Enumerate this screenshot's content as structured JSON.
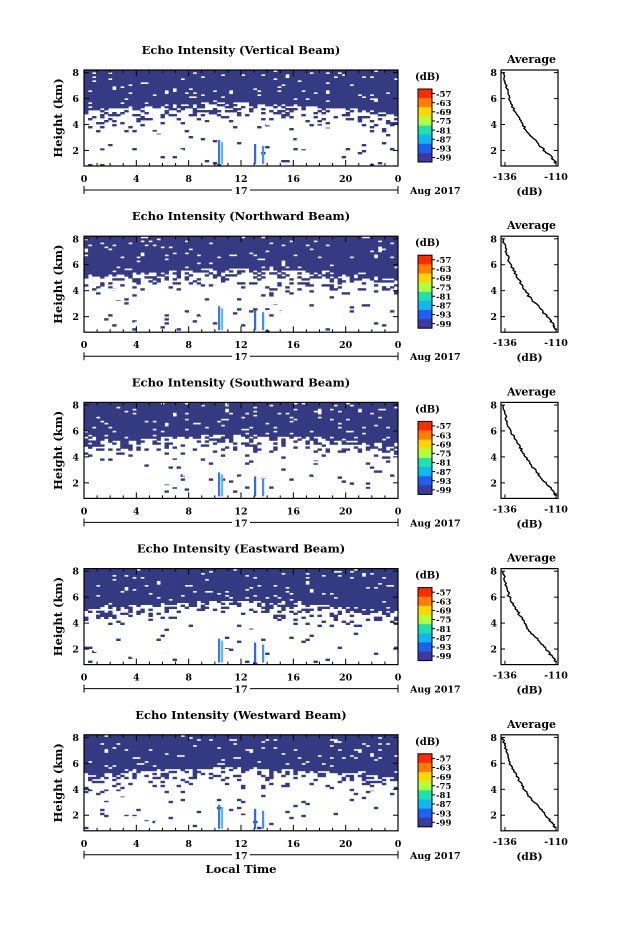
{
  "chart_data": [
    {
      "type": "heatmap",
      "title": "Echo Intensity (Vertical Beam)",
      "ylabel": "Height (km)",
      "xlabel": "",
      "x_ticks": [
        "0",
        "4",
        "8",
        "12",
        "16",
        "20",
        "0"
      ],
      "xlim": [
        0,
        24
      ],
      "y_ticks": [
        "2",
        "4",
        "6",
        "8"
      ],
      "ylim": [
        0.8,
        8.2
      ],
      "date_label": "17",
      "month_label": "Aug 2017",
      "colorbar": {
        "label": "(dB)",
        "ticks": [
          "-57",
          "-63",
          "-69",
          "-75",
          "-81",
          "-87",
          "-93",
          "-99"
        ],
        "colors": [
          "#ff2a00",
          "#ff7d00",
          "#ffd700",
          "#b0ff40",
          "#20e0b0",
          "#10b8f0",
          "#2060f0",
          "#3a3aa0"
        ]
      },
      "profile": {
        "title": "Average",
        "xlabel": "(dB)",
        "x_ticks": [
          "-136",
          "-110"
        ],
        "y_ticks": [
          "2",
          "4",
          "6",
          "8"
        ],
        "x": [
          -137,
          -136,
          -135,
          -134,
          -133,
          -131,
          -129,
          -127,
          -125,
          -122,
          -119,
          -116,
          -113,
          -111,
          -110
        ],
        "y": [
          8.0,
          7.3,
          6.8,
          6.2,
          5.6,
          5.0,
          4.5,
          4.0,
          3.5,
          3.0,
          2.5,
          2.0,
          1.6,
          1.2,
          1.0
        ]
      }
    },
    {
      "type": "heatmap",
      "title": "Echo Intensity (Northward Beam)",
      "ylabel": "Height (km)",
      "xlabel": "",
      "x_ticks": [
        "0",
        "4",
        "8",
        "12",
        "16",
        "20",
        "0"
      ],
      "xlim": [
        0,
        24
      ],
      "y_ticks": [
        "2",
        "4",
        "6",
        "8"
      ],
      "ylim": [
        0.8,
        8.2
      ],
      "date_label": "17",
      "month_label": "Aug 2017",
      "colorbar": {
        "label": "(dB)",
        "ticks": [
          "-57",
          "-63",
          "-69",
          "-75",
          "-81",
          "-87",
          "-93",
          "-99"
        ],
        "colors": [
          "#ff2a00",
          "#ff7d00",
          "#ffd700",
          "#b0ff40",
          "#20e0b0",
          "#10b8f0",
          "#2060f0",
          "#3a3aa0"
        ]
      },
      "profile": {
        "title": "Average",
        "xlabel": "(dB)",
        "x_ticks": [
          "-136",
          "-110"
        ],
        "y_ticks": [
          "2",
          "4",
          "6",
          "8"
        ],
        "x": [
          -137,
          -136,
          -135,
          -134,
          -132,
          -130,
          -128,
          -126,
          -124,
          -121,
          -118,
          -115,
          -113,
          -111,
          -110
        ],
        "y": [
          8.0,
          7.4,
          6.9,
          6.3,
          5.7,
          5.1,
          4.6,
          4.1,
          3.6,
          3.1,
          2.6,
          2.1,
          1.7,
          1.3,
          1.0
        ]
      }
    },
    {
      "type": "heatmap",
      "title": "Echo Intensity (Southward Beam)",
      "ylabel": "Height (km)",
      "xlabel": "",
      "x_ticks": [
        "0",
        "4",
        "8",
        "12",
        "16",
        "20",
        "0"
      ],
      "xlim": [
        0,
        24
      ],
      "y_ticks": [
        "2",
        "4",
        "6",
        "8"
      ],
      "ylim": [
        0.8,
        8.2
      ],
      "date_label": "17",
      "month_label": "Aug 2017",
      "colorbar": {
        "label": "(dB)",
        "ticks": [
          "-57",
          "-63",
          "-69",
          "-75",
          "-81",
          "-87",
          "-93",
          "-99"
        ],
        "colors": [
          "#ff2a00",
          "#ff7d00",
          "#ffd700",
          "#b0ff40",
          "#20e0b0",
          "#10b8f0",
          "#2060f0",
          "#3a3aa0"
        ]
      },
      "profile": {
        "title": "Average",
        "xlabel": "(dB)",
        "x_ticks": [
          "-136",
          "-110"
        ],
        "y_ticks": [
          "2",
          "4",
          "6",
          "8"
        ],
        "x": [
          -137,
          -136,
          -135,
          -133,
          -131,
          -129,
          -127,
          -125,
          -123,
          -120,
          -118,
          -115,
          -113,
          -111,
          -110
        ],
        "y": [
          8.0,
          7.2,
          6.6,
          6.0,
          5.4,
          4.9,
          4.4,
          3.9,
          3.4,
          2.9,
          2.4,
          2.0,
          1.6,
          1.2,
          1.0
        ]
      }
    },
    {
      "type": "heatmap",
      "title": "Echo Intensity (Eastward Beam)",
      "ylabel": "Height (km)",
      "xlabel": "",
      "x_ticks": [
        "0",
        "4",
        "8",
        "12",
        "16",
        "20",
        "0"
      ],
      "xlim": [
        0,
        24
      ],
      "y_ticks": [
        "2",
        "4",
        "6",
        "8"
      ],
      "ylim": [
        0.8,
        8.2
      ],
      "date_label": "17",
      "month_label": "Aug 2017",
      "colorbar": {
        "label": "(dB)",
        "ticks": [
          "-57",
          "-63",
          "-69",
          "-75",
          "-81",
          "-87",
          "-93",
          "-99"
        ],
        "colors": [
          "#ff2a00",
          "#ff7d00",
          "#ffd700",
          "#b0ff40",
          "#20e0b0",
          "#10b8f0",
          "#2060f0",
          "#3a3aa0"
        ]
      },
      "profile": {
        "title": "Average",
        "xlabel": "(dB)",
        "x_ticks": [
          "-136",
          "-110"
        ],
        "y_ticks": [
          "2",
          "4",
          "6",
          "8"
        ],
        "x": [
          -137,
          -136,
          -135,
          -134,
          -132,
          -130,
          -128,
          -126,
          -124,
          -121,
          -118,
          -115,
          -113,
          -111,
          -110
        ],
        "y": [
          8.0,
          7.3,
          6.7,
          6.1,
          5.5,
          5.0,
          4.5,
          4.0,
          3.5,
          3.0,
          2.5,
          2.0,
          1.6,
          1.2,
          1.0
        ]
      }
    },
    {
      "type": "heatmap",
      "title": "Echo Intensity (Westward Beam)",
      "ylabel": "Height (km)",
      "xlabel": "Local Time",
      "x_ticks": [
        "0",
        "4",
        "8",
        "12",
        "16",
        "20",
        "0"
      ],
      "xlim": [
        0,
        24
      ],
      "y_ticks": [
        "2",
        "4",
        "6",
        "8"
      ],
      "ylim": [
        0.8,
        8.2
      ],
      "date_label": "17",
      "month_label": "Aug 2017",
      "colorbar": {
        "label": "(dB)",
        "ticks": [
          "-57",
          "-63",
          "-69",
          "-75",
          "-81",
          "-87",
          "-93",
          "-99"
        ],
        "colors": [
          "#ff2a00",
          "#ff7d00",
          "#ffd700",
          "#b0ff40",
          "#20e0b0",
          "#10b8f0",
          "#2060f0",
          "#3a3aa0"
        ]
      },
      "profile": {
        "title": "Average",
        "xlabel": "(dB)",
        "x_ticks": [
          "-136",
          "-110"
        ],
        "y_ticks": [
          "2",
          "4",
          "6",
          "8"
        ],
        "x": [
          -137,
          -136,
          -135,
          -134,
          -132,
          -130,
          -128,
          -126,
          -124,
          -121,
          -118,
          -115,
          -113,
          -111,
          -110
        ],
        "y": [
          8.0,
          7.4,
          6.8,
          6.2,
          5.6,
          5.0,
          4.5,
          4.0,
          3.5,
          3.0,
          2.5,
          2.0,
          1.6,
          1.2,
          1.0
        ]
      }
    }
  ]
}
